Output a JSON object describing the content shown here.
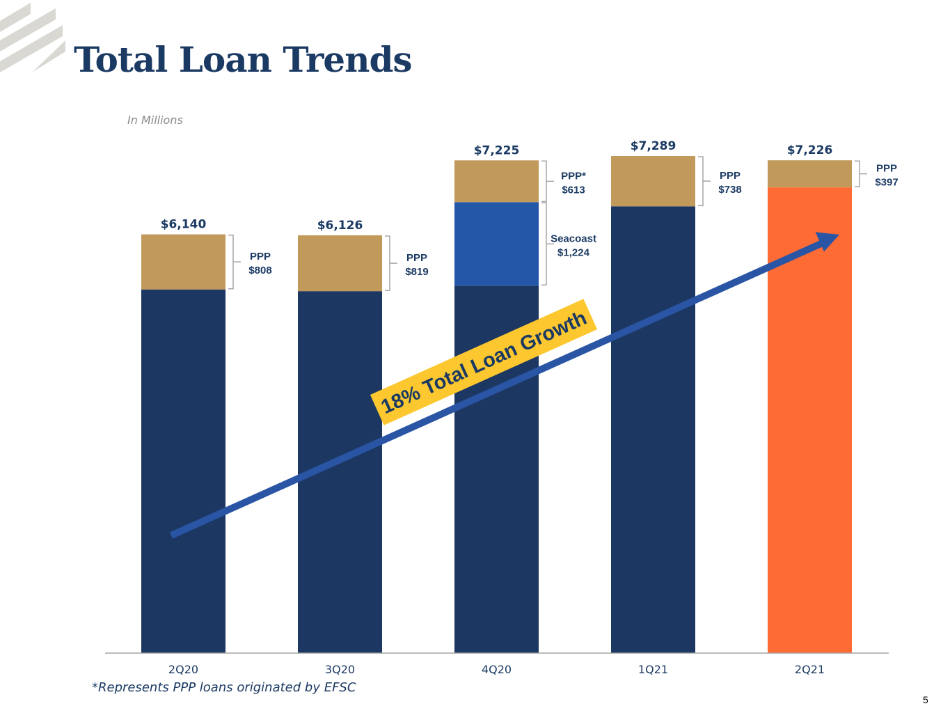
{
  "page": {
    "title": "Total Loan Trends",
    "footnote": "*Represents PPP loans originated by EFSC",
    "page_number": "5"
  },
  "colors": {
    "core": "#1b3762",
    "ppp": "#c19a5b",
    "seacoast": "#2457a8",
    "highlight": "#ff6b35",
    "arrow": "#2a55a4",
    "banner": "#fcc72f",
    "text": "#1b3a63",
    "bracket": "#a6a6a6",
    "axis": "#a6a6a6",
    "logo": "#d9d8d3"
  },
  "chart_data": {
    "type": "bar",
    "stacked": true,
    "units_note": "In Millions",
    "categories": [
      "2Q20",
      "3Q20",
      "4Q20",
      "1Q21",
      "2Q21"
    ],
    "totals": [
      6140,
      6126,
      7225,
      7289,
      7226
    ],
    "total_labels": [
      "$6,140",
      "$6,126",
      "$7,225",
      "$7,289",
      "$7,226"
    ],
    "series": [
      {
        "key": "core",
        "values": [
          5332,
          5307,
          5388,
          6551,
          6829
        ]
      },
      {
        "key": "seacoast",
        "values": [
          0,
          0,
          1224,
          0,
          0
        ]
      },
      {
        "key": "ppp",
        "values": [
          808,
          819,
          613,
          738,
          397
        ]
      }
    ],
    "highlight_index": 4,
    "annotations": [
      {
        "bar": 0,
        "from": 5332,
        "to": 6140,
        "lines": [
          "PPP",
          "$808"
        ]
      },
      {
        "bar": 1,
        "from": 5307,
        "to": 6126,
        "lines": [
          "PPP",
          "$819"
        ]
      },
      {
        "bar": 2,
        "from": 6612,
        "to": 7225,
        "lines": [
          "PPP*",
          "$613"
        ]
      },
      {
        "bar": 2,
        "from": 5388,
        "to": 6612,
        "lines": [
          "Seacoast",
          "$1,224"
        ]
      },
      {
        "bar": 3,
        "from": 6551,
        "to": 7289,
        "lines": [
          "PPP",
          "$738"
        ]
      },
      {
        "bar": 4,
        "from": 6829,
        "to": 7226,
        "lines": [
          "PPP",
          "$397"
        ]
      }
    ],
    "callout": "18% Total Loan Growth",
    "ylim": [
      0,
      8000
    ],
    "grid": false,
    "legend": "none"
  }
}
